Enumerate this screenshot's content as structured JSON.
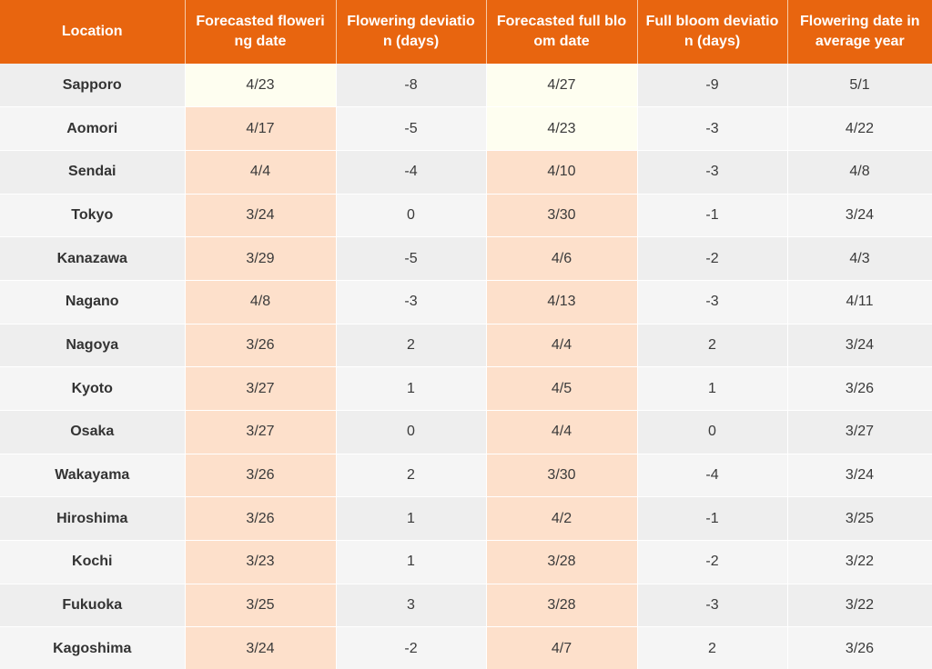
{
  "colors": {
    "header_bg": "#e8650f",
    "header_text": "#ffffff",
    "highlight_orange": "#fde0cb",
    "highlight_yellow": "#fefef0",
    "row_odd": "#eeeeee",
    "row_even": "#f5f5f5"
  },
  "table": {
    "headers": [
      "Location",
      "Forecasted flowering date",
      "Flowering deviation (days)",
      "Forecasted full bloom date",
      "Full bloom deviation (days)",
      "Flowering date in average year"
    ],
    "rows": [
      {
        "location": "Sapporo",
        "flowering": "4/23",
        "flowering_dev": "-8",
        "full_bloom": "4/27",
        "full_bloom_dev": "-9",
        "average": "5/1",
        "flowering_highlight": "yellow",
        "full_bloom_highlight": "yellow"
      },
      {
        "location": "Aomori",
        "flowering": "4/17",
        "flowering_dev": "-5",
        "full_bloom": "4/23",
        "full_bloom_dev": "-3",
        "average": "4/22",
        "flowering_highlight": "orange",
        "full_bloom_highlight": "yellow"
      },
      {
        "location": "Sendai",
        "flowering": "4/4",
        "flowering_dev": "-4",
        "full_bloom": "4/10",
        "full_bloom_dev": "-3",
        "average": "4/8",
        "flowering_highlight": "orange",
        "full_bloom_highlight": "orange"
      },
      {
        "location": "Tokyo",
        "flowering": "3/24",
        "flowering_dev": "0",
        "full_bloom": "3/30",
        "full_bloom_dev": "-1",
        "average": "3/24",
        "flowering_highlight": "orange",
        "full_bloom_highlight": "orange"
      },
      {
        "location": "Kanazawa",
        "flowering": "3/29",
        "flowering_dev": "-5",
        "full_bloom": "4/6",
        "full_bloom_dev": "-2",
        "average": "4/3",
        "flowering_highlight": "orange",
        "full_bloom_highlight": "orange"
      },
      {
        "location": "Nagano",
        "flowering": "4/8",
        "flowering_dev": "-3",
        "full_bloom": "4/13",
        "full_bloom_dev": "-3",
        "average": "4/11",
        "flowering_highlight": "orange",
        "full_bloom_highlight": "orange"
      },
      {
        "location": "Nagoya",
        "flowering": "3/26",
        "flowering_dev": "2",
        "full_bloom": "4/4",
        "full_bloom_dev": "2",
        "average": "3/24",
        "flowering_highlight": "orange",
        "full_bloom_highlight": "orange"
      },
      {
        "location": "Kyoto",
        "flowering": "3/27",
        "flowering_dev": "1",
        "full_bloom": "4/5",
        "full_bloom_dev": "1",
        "average": "3/26",
        "flowering_highlight": "orange",
        "full_bloom_highlight": "orange"
      },
      {
        "location": "Osaka",
        "flowering": "3/27",
        "flowering_dev": "0",
        "full_bloom": "4/4",
        "full_bloom_dev": "0",
        "average": "3/27",
        "flowering_highlight": "orange",
        "full_bloom_highlight": "orange"
      },
      {
        "location": "Wakayama",
        "flowering": "3/26",
        "flowering_dev": "2",
        "full_bloom": "3/30",
        "full_bloom_dev": "-4",
        "average": "3/24",
        "flowering_highlight": "orange",
        "full_bloom_highlight": "orange"
      },
      {
        "location": "Hiroshima",
        "flowering": "3/26",
        "flowering_dev": "1",
        "full_bloom": "4/2",
        "full_bloom_dev": "-1",
        "average": "3/25",
        "flowering_highlight": "orange",
        "full_bloom_highlight": "orange"
      },
      {
        "location": "Kochi",
        "flowering": "3/23",
        "flowering_dev": "1",
        "full_bloom": "3/28",
        "full_bloom_dev": "-2",
        "average": "3/22",
        "flowering_highlight": "orange",
        "full_bloom_highlight": "orange"
      },
      {
        "location": "Fukuoka",
        "flowering": "3/25",
        "flowering_dev": "3",
        "full_bloom": "3/28",
        "full_bloom_dev": "-3",
        "average": "3/22",
        "flowering_highlight": "orange",
        "full_bloom_highlight": "orange"
      },
      {
        "location": "Kagoshima",
        "flowering": "3/24",
        "flowering_dev": "-2",
        "full_bloom": "4/7",
        "full_bloom_dev": "2",
        "average": "3/26",
        "flowering_highlight": "orange",
        "full_bloom_highlight": "orange"
      }
    ]
  }
}
